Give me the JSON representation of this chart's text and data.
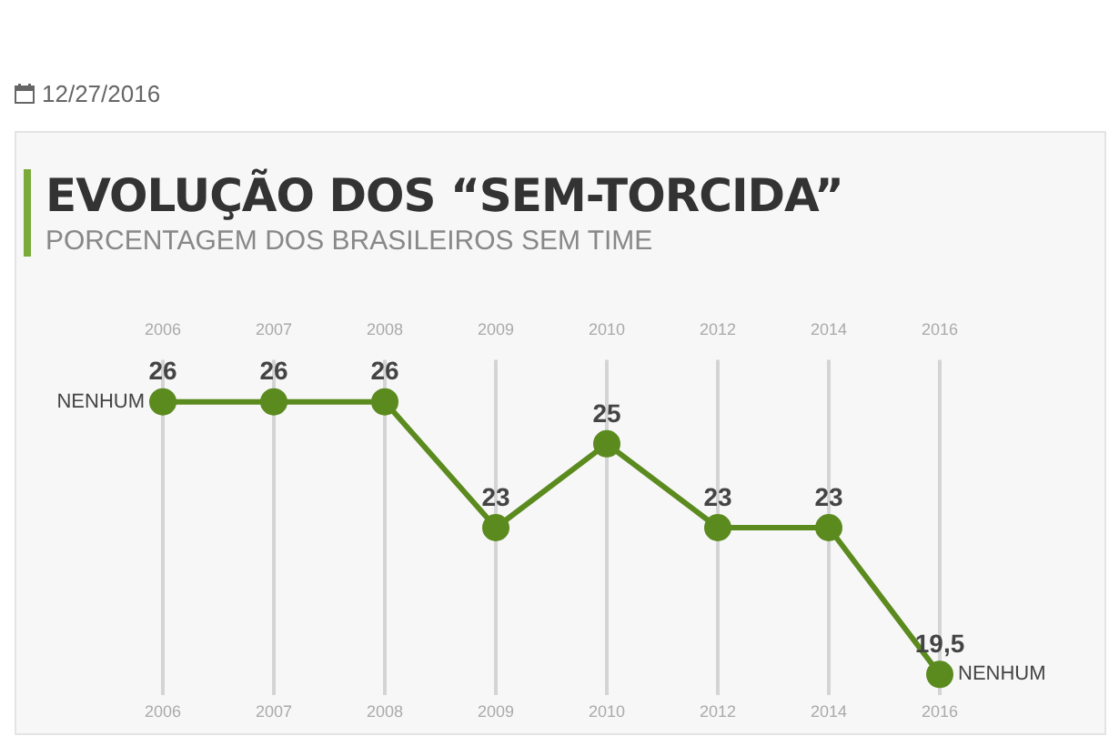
{
  "chart_data": {
    "type": "line",
    "title": "EVOLUÇÃO DOS “SEM-TORCIDA”",
    "subtitle": "PORCENTAGEM DOS BRASILEIROS SEM TIME",
    "categories": [
      "2006",
      "2007",
      "2008",
      "2009",
      "2010",
      "2012",
      "2014",
      "2016"
    ],
    "series": [
      {
        "color": "#5b8a1e",
        "values": [
          26,
          26,
          26,
          23,
          25,
          23,
          23,
          19.5
        ],
        "value_labels": [
          "26",
          "26",
          "26",
          "23",
          "25",
          "23",
          "23",
          "19,5"
        ]
      }
    ],
    "annotations": [
      "12/27/2016",
      {
        "text": "NENHUM",
        "x": "2006",
        "y": 26
      },
      {
        "text": "NENHUM",
        "x": "2016",
        "y": 19.5
      }
    ],
    "grid": "x",
    "marker": "circle",
    "line_style": "solid",
    "legend": false
  }
}
